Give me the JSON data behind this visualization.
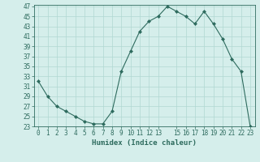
{
  "x": [
    0,
    1,
    2,
    3,
    4,
    5,
    6,
    7,
    8,
    9,
    10,
    11,
    12,
    13,
    14,
    15,
    16,
    17,
    18,
    19,
    20,
    21,
    22,
    23
  ],
  "y": [
    32,
    29,
    27,
    26,
    25,
    24,
    23.5,
    23.5,
    26,
    34,
    38,
    42,
    44,
    45,
    47,
    46,
    45,
    43.5,
    46,
    43.5,
    40.5,
    36.5,
    34,
    23
  ],
  "line_color": "#2e6b5e",
  "marker": "D",
  "marker_size": 2,
  "bg_color": "#d5eeeb",
  "grid_color": "#b0d8d2",
  "xlabel": "Humidex (Indice chaleur)",
  "ylim": [
    23,
    47
  ],
  "xlim": [
    -0.5,
    23.5
  ],
  "yticks": [
    23,
    25,
    27,
    29,
    31,
    33,
    35,
    37,
    39,
    41,
    43,
    45,
    47
  ],
  "xticks": [
    0,
    1,
    2,
    3,
    4,
    5,
    6,
    7,
    8,
    9,
    10,
    11,
    12,
    13,
    15,
    16,
    17,
    18,
    19,
    20,
    21,
    22,
    23
  ],
  "xtick_labels": [
    "0",
    "1",
    "2",
    "3",
    "4",
    "5",
    "6",
    "7",
    "8",
    "9",
    "10",
    "11",
    "12",
    "13",
    "15",
    "16",
    "17",
    "18",
    "19",
    "20",
    "21",
    "22",
    "23"
  ],
  "label_fontsize": 6.5,
  "tick_fontsize": 5.5
}
